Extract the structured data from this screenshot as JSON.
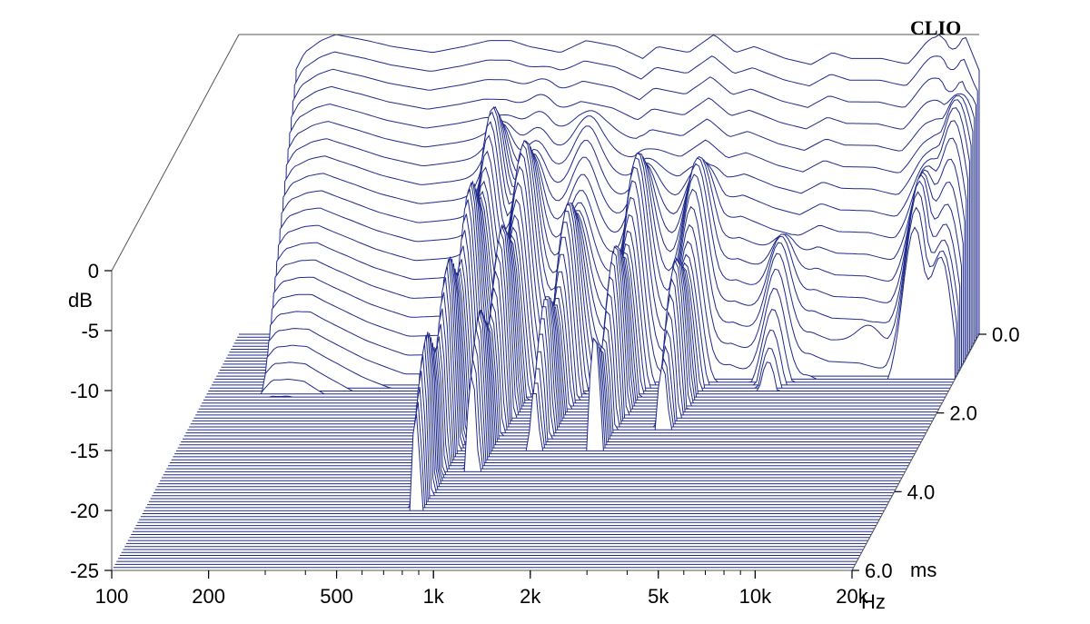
{
  "chart_data": {
    "type": "waterfall",
    "title": "",
    "brand_label": "CLIO",
    "x_axis": {
      "scale": "log",
      "range": [
        100,
        20000
      ],
      "ticks": [
        {
          "value": 100,
          "label": "100"
        },
        {
          "value": 200,
          "label": "200"
        },
        {
          "value": 500,
          "label": "500"
        },
        {
          "value": 1000,
          "label": "1k"
        },
        {
          "value": 2000,
          "label": "2k"
        },
        {
          "value": 5000,
          "label": "5k"
        },
        {
          "value": 10000,
          "label": "10k"
        },
        {
          "value": 20000,
          "label": "20k"
        }
      ],
      "unit_label": "Hz"
    },
    "y_axis": {
      "range": [
        -25,
        0
      ],
      "ticks": [
        {
          "value": 0,
          "label": "0"
        },
        {
          "value": -5,
          "label": "-5"
        },
        {
          "value": -10,
          "label": "-10"
        },
        {
          "value": -15,
          "label": "-15"
        },
        {
          "value": -20,
          "label": "-20"
        },
        {
          "value": -25,
          "label": "-25"
        }
      ],
      "unit_label": "dB"
    },
    "z_axis": {
      "range": [
        0.0,
        6.0
      ],
      "ticks": [
        {
          "value": 0.0,
          "label": "0.0"
        },
        {
          "value": 2.0,
          "label": "2.0"
        },
        {
          "value": 4.0,
          "label": "4.0"
        },
        {
          "value": 6.0,
          "label": "6.0"
        }
      ],
      "unit_label": "ms"
    },
    "slice_count": 80,
    "line_color": "#1f2a8a",
    "initial_response": {
      "freq_hz": [
        150,
        160,
        180,
        200,
        250,
        300,
        400,
        500,
        600,
        700,
        800,
        1000,
        1200,
        1500,
        1800,
        2000,
        2500,
        3000,
        3500,
        4000,
        5000,
        6000,
        7000,
        8000,
        10000,
        12000,
        14000,
        15000,
        16000,
        17000,
        18000,
        20000
      ],
      "db": [
        -3,
        -1.5,
        -0.5,
        0,
        -0.5,
        -1,
        -1.5,
        -1,
        -0.5,
        -0.5,
        -1,
        -1.5,
        -0.5,
        -1,
        -2,
        -1,
        -1.5,
        0,
        -1.5,
        -1,
        -2,
        -2.5,
        -1.5,
        -2,
        -2,
        -2.5,
        -1,
        0,
        -3,
        -1.5,
        0,
        -3
      ]
    },
    "decay": {
      "resonances": [
        {
          "freq_hz": 700,
          "level_db": -3,
          "duration_ms": 4.5
        },
        {
          "freq_hz": 900,
          "level_db": -4,
          "duration_ms": 3.5
        },
        {
          "freq_hz": 1300,
          "level_db": -6,
          "duration_ms": 3
        },
        {
          "freq_hz": 2000,
          "level_db": -5,
          "duration_ms": 3
        },
        {
          "freq_hz": 3000,
          "level_db": -6,
          "duration_ms": 2.5
        },
        {
          "freq_hz": 5500,
          "level_db": -9,
          "duration_ms": 1.5
        },
        {
          "freq_hz": 10500,
          "level_db": -10,
          "duration_ms": 1
        },
        {
          "freq_hz": 15000,
          "level_db": -2,
          "duration_ms": 1.2
        },
        {
          "freq_hz": 18000,
          "level_db": -2,
          "duration_ms": 1.2
        }
      ]
    }
  }
}
